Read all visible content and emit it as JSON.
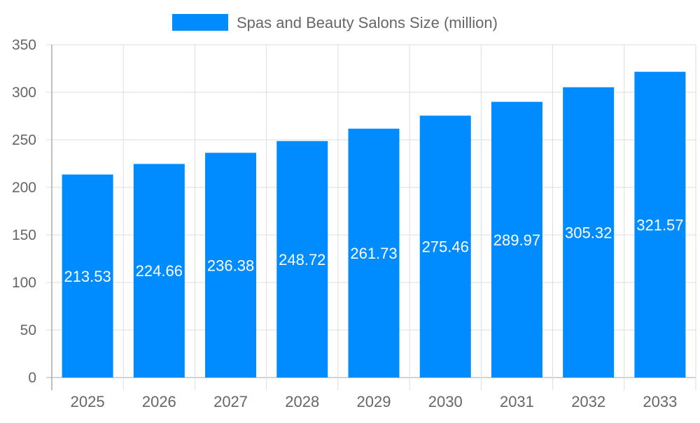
{
  "chart_data": {
    "type": "bar",
    "title": "",
    "xlabel": "",
    "ylabel": "",
    "legend": {
      "position": "top",
      "entries": [
        "Spas and Beauty Salons Size (million)"
      ]
    },
    "categories": [
      "2025",
      "2026",
      "2027",
      "2028",
      "2029",
      "2030",
      "2031",
      "2032",
      "2033"
    ],
    "series": [
      {
        "name": "Spas and Beauty Salons Size (million)",
        "values": [
          213.53,
          224.66,
          236.38,
          248.72,
          261.73,
          275.46,
          289.97,
          305.32,
          321.57
        ],
        "color": "#008cff"
      }
    ],
    "ylim": [
      0,
      350
    ],
    "yticks": [
      0,
      50,
      100,
      150,
      200,
      250,
      300,
      350
    ],
    "grid": true,
    "data_labels": "center"
  }
}
